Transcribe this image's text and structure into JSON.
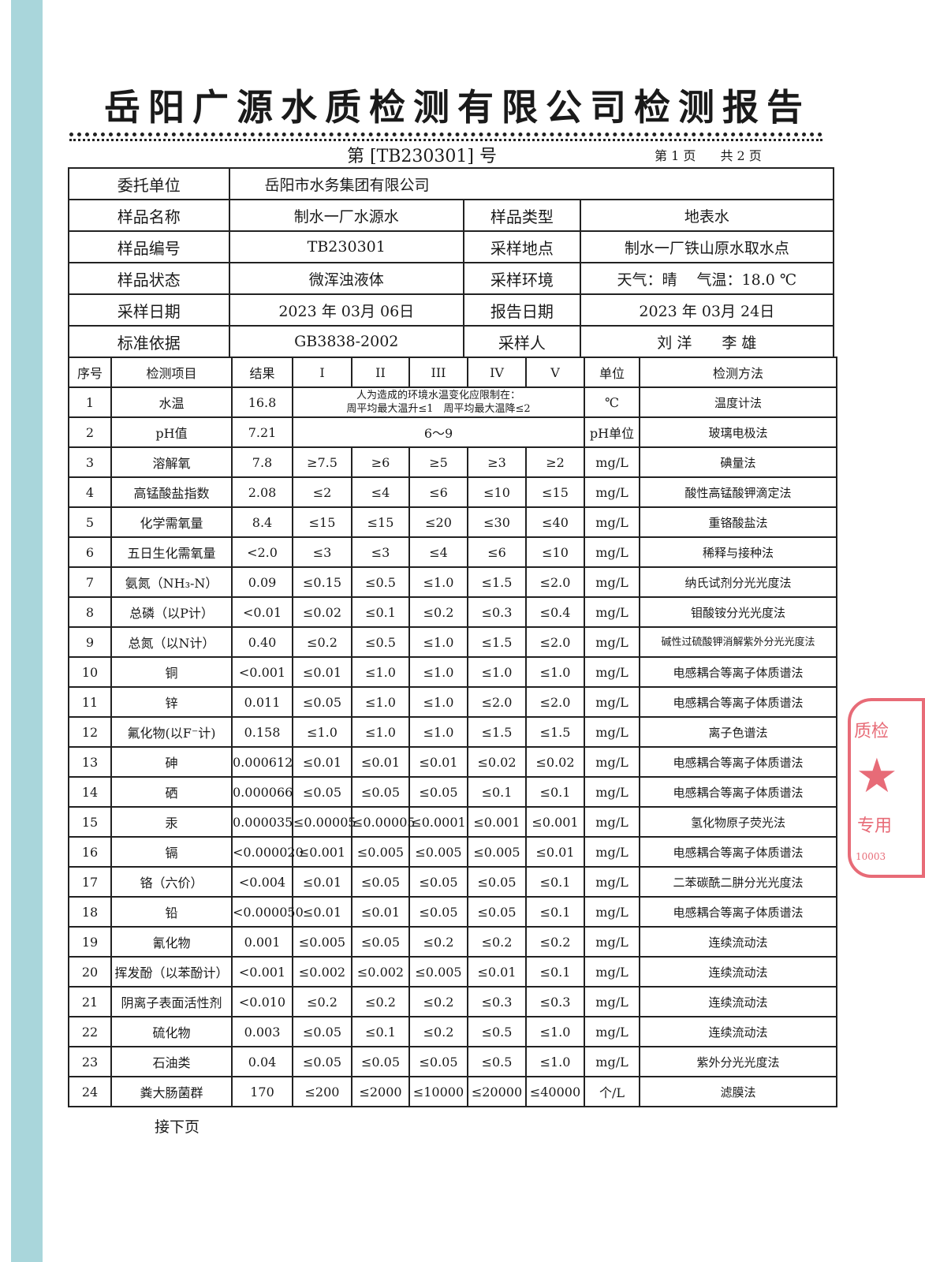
{
  "title": "岳阳广源水质检测有限公司检测报告",
  "report_no": "第 [TB230301] 号",
  "page": {
    "current": "第 1 页",
    "total": "共 2 页"
  },
  "info": {
    "client_label": "委托单位",
    "client": "岳阳市水务集团有限公司",
    "sample_name_label": "样品名称",
    "sample_name": "制水一厂水源水",
    "sample_type_label": "样品类型",
    "sample_type": "地表水",
    "sample_no_label": "样品编号",
    "sample_no": "TB230301",
    "location_label": "采样地点",
    "location": "制水一厂铁山原水取水点",
    "state_label": "样品状态",
    "state": "微浑浊液体",
    "env_label": "采样环境",
    "env": "天气：晴　 气温：18.0 ℃",
    "date_label": "采样日期",
    "date": "2023 年 03月 06日",
    "report_date_label": "报告日期",
    "report_date": "2023 年 03月 24日",
    "standard_label": "标准依据",
    "standard": "GB3838-2002",
    "sampler_label": "采样人",
    "sampler": "刘 洋　　李 雄"
  },
  "table": {
    "headers": [
      "序号",
      "检测项目",
      "结果",
      "I",
      "II",
      "III",
      "IV",
      "V",
      "单位",
      "检测方法"
    ],
    "row1_limit": "人为造成的环境水温变化应限制在：\n周平均最大温升≤1　周平均最大温降≤2",
    "row2_limit": "6～9",
    "rows": [
      [
        "1",
        "水温",
        "16.8",
        "",
        "",
        "",
        "",
        "",
        "℃",
        "温度计法"
      ],
      [
        "2",
        "pH值",
        "7.21",
        "",
        "",
        "",
        "",
        "",
        "pH单位",
        "玻璃电极法"
      ],
      [
        "3",
        "溶解氧",
        "7.8",
        "≥7.5",
        "≥6",
        "≥5",
        "≥3",
        "≥2",
        "mg/L",
        "碘量法"
      ],
      [
        "4",
        "高锰酸盐指数",
        "2.08",
        "≤2",
        "≤4",
        "≤6",
        "≤10",
        "≤15",
        "mg/L",
        "酸性高锰酸钾滴定法"
      ],
      [
        "5",
        "化学需氧量",
        "8.4",
        "≤15",
        "≤15",
        "≤20",
        "≤30",
        "≤40",
        "mg/L",
        "重铬酸盐法"
      ],
      [
        "6",
        "五日生化需氧量",
        "<2.0",
        "≤3",
        "≤3",
        "≤4",
        "≤6",
        "≤10",
        "mg/L",
        "稀释与接种法"
      ],
      [
        "7",
        "氨氮（NH₃-N）",
        "0.09",
        "≤0.15",
        "≤0.5",
        "≤1.0",
        "≤1.5",
        "≤2.0",
        "mg/L",
        "纳氏试剂分光光度法"
      ],
      [
        "8",
        "总磷（以P计）",
        "<0.01",
        "≤0.02",
        "≤0.1",
        "≤0.2",
        "≤0.3",
        "≤0.4",
        "mg/L",
        "钼酸铵分光光度法"
      ],
      [
        "9",
        "总氮（以N计）",
        "0.40",
        "≤0.2",
        "≤0.5",
        "≤1.0",
        "≤1.5",
        "≤2.0",
        "mg/L",
        "碱性过硫酸钾消解紫外分光光度法"
      ],
      [
        "10",
        "铜",
        "<0.001",
        "≤0.01",
        "≤1.0",
        "≤1.0",
        "≤1.0",
        "≤1.0",
        "mg/L",
        "电感耦合等离子体质谱法"
      ],
      [
        "11",
        "锌",
        "0.011",
        "≤0.05",
        "≤1.0",
        "≤1.0",
        "≤2.0",
        "≤2.0",
        "mg/L",
        "电感耦合等离子体质谱法"
      ],
      [
        "12",
        "氟化物(以F⁻计)",
        "0.158",
        "≤1.0",
        "≤1.0",
        "≤1.0",
        "≤1.5",
        "≤1.5",
        "mg/L",
        "离子色谱法"
      ],
      [
        "13",
        "砷",
        "0.000612",
        "≤0.01",
        "≤0.01",
        "≤0.01",
        "≤0.02",
        "≤0.02",
        "mg/L",
        "电感耦合等离子体质谱法"
      ],
      [
        "14",
        "硒",
        "0.000066",
        "≤0.05",
        "≤0.05",
        "≤0.05",
        "≤0.1",
        "≤0.1",
        "mg/L",
        "电感耦合等离子体质谱法"
      ],
      [
        "15",
        "汞",
        "0.000035",
        "≤0.00005",
        "≤0.00005",
        "≤0.0001",
        "≤0.001",
        "≤0.001",
        "mg/L",
        "氢化物原子荧光法"
      ],
      [
        "16",
        "镉",
        "<0.000020",
        "≤0.001",
        "≤0.005",
        "≤0.005",
        "≤0.005",
        "≤0.01",
        "mg/L",
        "电感耦合等离子体质谱法"
      ],
      [
        "17",
        "铬（六价）",
        "<0.004",
        "≤0.01",
        "≤0.05",
        "≤0.05",
        "≤0.05",
        "≤0.1",
        "mg/L",
        "二苯碳酰二肼分光光度法"
      ],
      [
        "18",
        "铅",
        "<0.000050",
        "≤0.01",
        "≤0.01",
        "≤0.05",
        "≤0.05",
        "≤0.1",
        "mg/L",
        "电感耦合等离子体质谱法"
      ],
      [
        "19",
        "氰化物",
        "0.001",
        "≤0.005",
        "≤0.05",
        "≤0.2",
        "≤0.2",
        "≤0.2",
        "mg/L",
        "连续流动法"
      ],
      [
        "20",
        "挥发酚（以苯酚计）",
        "<0.001",
        "≤0.002",
        "≤0.002",
        "≤0.005",
        "≤0.01",
        "≤0.1",
        "mg/L",
        "连续流动法"
      ],
      [
        "21",
        "阴离子表面活性剂",
        "<0.010",
        "≤0.2",
        "≤0.2",
        "≤0.2",
        "≤0.3",
        "≤0.3",
        "mg/L",
        "连续流动法"
      ],
      [
        "22",
        "硫化物",
        "0.003",
        "≤0.05",
        "≤0.1",
        "≤0.2",
        "≤0.5",
        "≤1.0",
        "mg/L",
        "连续流动法"
      ],
      [
        "23",
        "石油类",
        "0.04",
        "≤0.05",
        "≤0.05",
        "≤0.05",
        "≤0.5",
        "≤1.0",
        "mg/L",
        "紫外分光光度法"
      ],
      [
        "24",
        "粪大肠菌群",
        "170",
        "≤200",
        "≤2000",
        "≤10000",
        "≤20000",
        "≤40000",
        "个/L",
        "滤膜法"
      ]
    ]
  },
  "footer": "接下页",
  "stamp": {
    "text": "质检专用 10003",
    "color": "#e03a4a"
  }
}
